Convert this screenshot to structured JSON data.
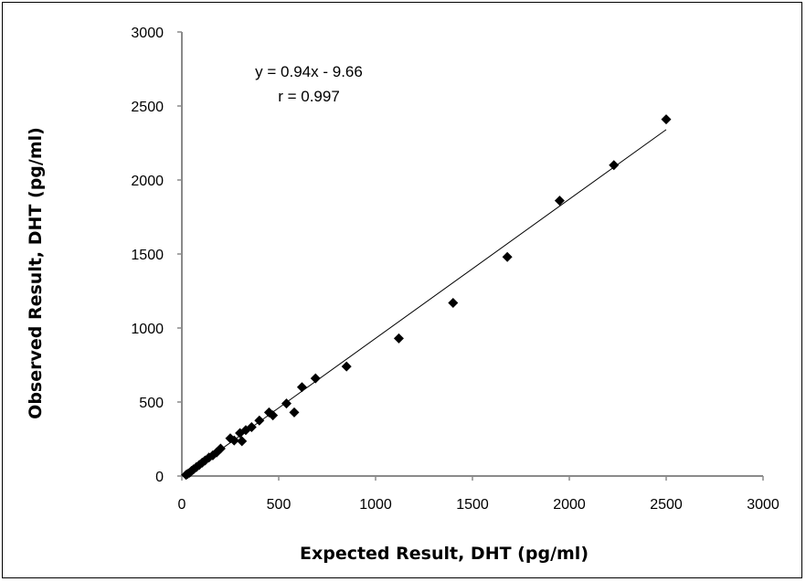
{
  "chart_data": {
    "type": "scatter",
    "title": "",
    "xlabel": "Expected Result, DHT (pg/ml)",
    "ylabel": "Observed Result, DHT (pg/ml)",
    "xlim": [
      0,
      3000
    ],
    "ylim": [
      0,
      3000
    ],
    "xticks": [
      "0",
      "500",
      "1000",
      "1500",
      "2000",
      "2500",
      "3000"
    ],
    "yticks": [
      "0",
      "500",
      "1000",
      "1500",
      "2000",
      "2500",
      "3000"
    ],
    "grid": false,
    "legend": "none",
    "marker": "diamond",
    "marker_color": "#000000",
    "annotations": [
      "y = 0.94x - 9.66",
      "r = 0.997"
    ],
    "trendline": {
      "slope": 0.94,
      "intercept": -9.66,
      "x_range": [
        20,
        2500
      ]
    },
    "points": [
      [
        22,
        8
      ],
      [
        30,
        15
      ],
      [
        40,
        22
      ],
      [
        50,
        35
      ],
      [
        60,
        45
      ],
      [
        75,
        60
      ],
      [
        90,
        75
      ],
      [
        105,
        90
      ],
      [
        120,
        105
      ],
      [
        140,
        125
      ],
      [
        160,
        140
      ],
      [
        180,
        160
      ],
      [
        200,
        185
      ],
      [
        250,
        255
      ],
      [
        270,
        240
      ],
      [
        300,
        290
      ],
      [
        310,
        235
      ],
      [
        330,
        310
      ],
      [
        360,
        330
      ],
      [
        400,
        375
      ],
      [
        450,
        430
      ],
      [
        470,
        410
      ],
      [
        540,
        490
      ],
      [
        580,
        430
      ],
      [
        620,
        600
      ],
      [
        690,
        660
      ],
      [
        850,
        740
      ],
      [
        1120,
        930
      ],
      [
        1400,
        1170
      ],
      [
        1680,
        1480
      ],
      [
        1950,
        1860
      ],
      [
        2230,
        2100
      ],
      [
        2500,
        2410
      ]
    ]
  }
}
